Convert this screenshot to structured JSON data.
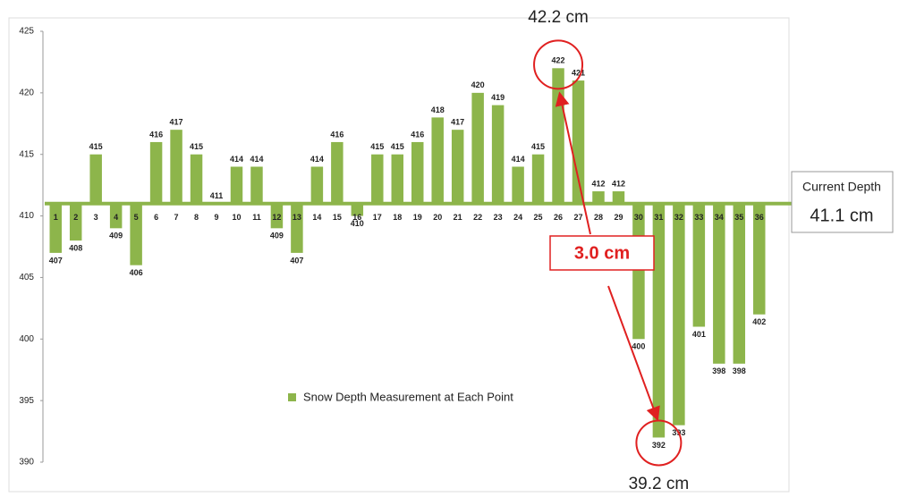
{
  "chart_data": {
    "type": "bar",
    "categories": [
      "1",
      "2",
      "3",
      "4",
      "5",
      "6",
      "7",
      "8",
      "9",
      "10",
      "11",
      "12",
      "13",
      "14",
      "15",
      "16",
      "17",
      "18",
      "19",
      "20",
      "21",
      "22",
      "23",
      "24",
      "25",
      "26",
      "27",
      "28",
      "29",
      "30",
      "31",
      "32",
      "33",
      "34",
      "35",
      "36"
    ],
    "series": [
      {
        "name": "Snow Depth Measurement at Each Point",
        "color": "#8db54b",
        "values": [
          407,
          408,
          415,
          409,
          406,
          416,
          417,
          415,
          411,
          414,
          414,
          409,
          407,
          414,
          416,
          410,
          415,
          415,
          416,
          418,
          417,
          420,
          419,
          414,
          415,
          422,
          421,
          412,
          412,
          400,
          392,
          393,
          401,
          398,
          398,
          402
        ]
      }
    ],
    "baseline": 411,
    "ylim": [
      390,
      425
    ],
    "yticks": [
      390,
      395,
      400,
      405,
      410,
      415,
      420,
      425
    ],
    "annotations": {
      "max": "42.2 cm",
      "min": "39.2 cm",
      "range": "3.0 cm",
      "current_label": "Current Depth",
      "current": "41.1 cm"
    }
  }
}
